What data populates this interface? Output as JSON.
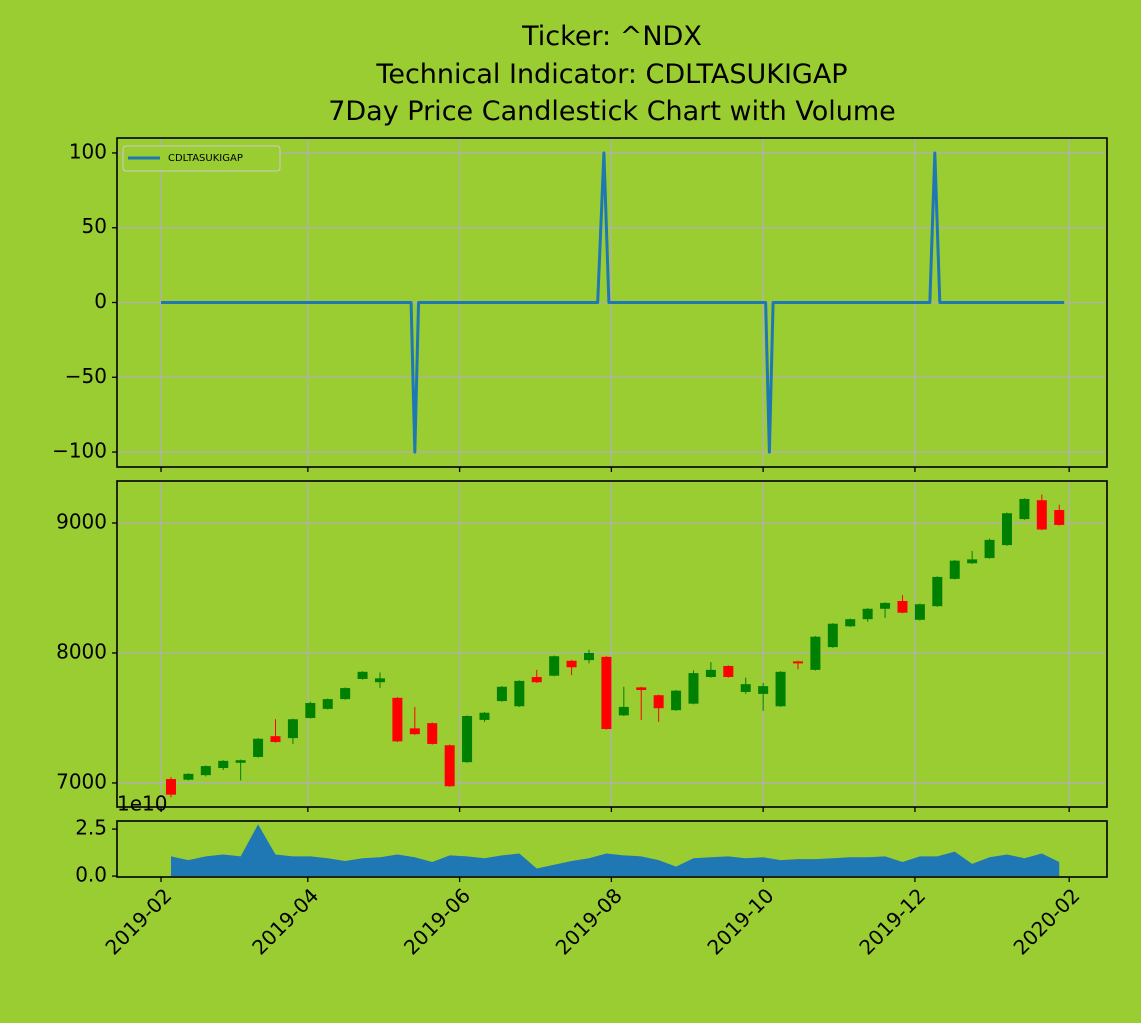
{
  "chart_data": [
    {
      "type": "line",
      "title": [
        "Ticker: ^NDX",
        "Technical Indicator: CDLTASUKIGAP",
        "7Day Price Candlestick Chart with Volume"
      ],
      "series": [
        {
          "name": "CDLTASUKIGAP",
          "color": "#1f77b4",
          "x": [
            31,
            131.5,
            133,
            134.5,
            206.5,
            209,
            211,
            274,
            275.5,
            277,
            340,
            342,
            344,
            394
          ],
          "values": [
            0,
            0,
            -100,
            0,
            0,
            100,
            0,
            0,
            -100,
            0,
            0,
            100,
            0,
            0
          ]
        }
      ],
      "ylim": [
        -110,
        110
      ],
      "yticks": [
        {
          "value": -100,
          "label": "−100"
        },
        {
          "value": -50,
          "label": "−50"
        },
        0,
        50,
        100
      ],
      "grid": true,
      "legend": "upper left"
    },
    {
      "type": "candlestick",
      "x": [
        35,
        42,
        49,
        56,
        63,
        70,
        77,
        84,
        91,
        98,
        105,
        112,
        119,
        126,
        133,
        140,
        147,
        154,
        161,
        168,
        175,
        182,
        189,
        196,
        203,
        210,
        217,
        224,
        231,
        238,
        245,
        252,
        259,
        266,
        273,
        280,
        287,
        294,
        301,
        308,
        315,
        322,
        329,
        336,
        343,
        350,
        357,
        364,
        371,
        378,
        385,
        392
      ],
      "open": [
        7030,
        7025,
        7060,
        7115,
        7155,
        7200,
        7360,
        7345,
        7500,
        7570,
        7645,
        7800,
        7775,
        7655,
        7420,
        7460,
        7290,
        7160,
        7485,
        7630,
        7590,
        7815,
        7825,
        7940,
        7945,
        7970,
        7520,
        7735,
        7675,
        7560,
        7610,
        7815,
        7900,
        7700,
        7685,
        7590,
        7935,
        7870,
        8045,
        8205,
        8260,
        8340,
        8400,
        8255,
        8360,
        8570,
        8690,
        8730,
        8830,
        9030,
        9175,
        9100
      ],
      "high": [
        7045,
        7075,
        7135,
        7175,
        7180,
        7345,
        7490,
        7495,
        7625,
        7650,
        7735,
        7860,
        7850,
        7660,
        7585,
        7465,
        7295,
        7520,
        7545,
        7745,
        7790,
        7870,
        7980,
        7945,
        8025,
        7975,
        7740,
        7740,
        7680,
        7715,
        7865,
        7930,
        7905,
        7810,
        7770,
        7860,
        7940,
        8130,
        8230,
        8265,
        8345,
        8390,
        8445,
        8380,
        8590,
        8715,
        8785,
        8880,
        9080,
        9190,
        9220,
        9140
      ],
      "low": [
        6890,
        7020,
        7050,
        7100,
        7020,
        7195,
        7310,
        7300,
        7495,
        7565,
        7640,
        7795,
        7730,
        7315,
        7370,
        7295,
        6970,
        7155,
        7470,
        7625,
        7585,
        7770,
        7820,
        7830,
        7920,
        7410,
        7515,
        7485,
        7470,
        7555,
        7605,
        7810,
        7810,
        7685,
        7555,
        7585,
        7875,
        7865,
        8040,
        8200,
        8240,
        8270,
        8305,
        8250,
        8355,
        8565,
        8685,
        8725,
        8825,
        9025,
        8945,
        8980
      ],
      "close": [
        6910,
        7070,
        7130,
        7170,
        7175,
        7340,
        7315,
        7490,
        7615,
        7645,
        7730,
        7855,
        7805,
        7320,
        7375,
        7300,
        6975,
        7515,
        7540,
        7740,
        7785,
        7775,
        7975,
        7890,
        8000,
        7415,
        7585,
        7715,
        7575,
        7710,
        7845,
        7870,
        7815,
        7760,
        7745,
        7855,
        7920,
        8125,
        8225,
        8260,
        8340,
        8385,
        8310,
        8375,
        8585,
        8710,
        8720,
        8870,
        9075,
        9185,
        8950,
        8985
      ],
      "up_color": "green",
      "down_color": "red",
      "ylim": [
        6815,
        9323
      ],
      "yticks": [
        7000,
        8000,
        9000
      ],
      "grid": true
    },
    {
      "type": "area",
      "x": [
        35,
        42,
        49,
        56,
        63,
        70,
        77,
        84,
        91,
        98,
        105,
        112,
        119,
        126,
        133,
        140,
        147,
        154,
        161,
        168,
        175,
        182,
        189,
        196,
        203,
        210,
        217,
        224,
        231,
        238,
        245,
        252,
        259,
        266,
        273,
        280,
        287,
        294,
        301,
        308,
        315,
        322,
        329,
        336,
        343,
        350,
        357,
        364,
        371,
        378,
        385,
        392
      ],
      "values": [
        1.05,
        0.85,
        1.05,
        1.15,
        1.05,
        2.75,
        1.15,
        1.05,
        1.05,
        0.95,
        0.8,
        0.95,
        1.0,
        1.15,
        1.0,
        0.75,
        1.1,
        1.05,
        0.95,
        1.1,
        1.2,
        0.4,
        0.6,
        0.8,
        0.95,
        1.2,
        1.1,
        1.05,
        0.85,
        0.5,
        0.95,
        1.0,
        1.05,
        0.95,
        1.0,
        0.85,
        0.9,
        0.9,
        0.95,
        1.0,
        1.0,
        1.05,
        0.75,
        1.05,
        1.05,
        1.3,
        0.65,
        1.0,
        1.15,
        0.95,
        1.2,
        0.75
      ],
      "color": "#1f77b4",
      "offset_label": "1e10",
      "ylim": [
        -0.05,
        2.93
      ],
      "yticks": [
        {
          "value": 0,
          "label": "0.0"
        },
        {
          "value": 2.5,
          "label": "2.5"
        }
      ],
      "xlim": [
        13.3,
        411.2
      ],
      "xticks": [
        {
          "value": 31,
          "label": "2019-02"
        },
        {
          "value": 90,
          "label": "2019-04"
        },
        {
          "value": 151,
          "label": "2019-06"
        },
        {
          "value": 212,
          "label": "2019-08"
        },
        {
          "value": 273,
          "label": "2019-10"
        },
        {
          "value": 334,
          "label": "2019-12"
        },
        {
          "value": 396,
          "label": "2020-02"
        }
      ],
      "grid": false
    }
  ]
}
